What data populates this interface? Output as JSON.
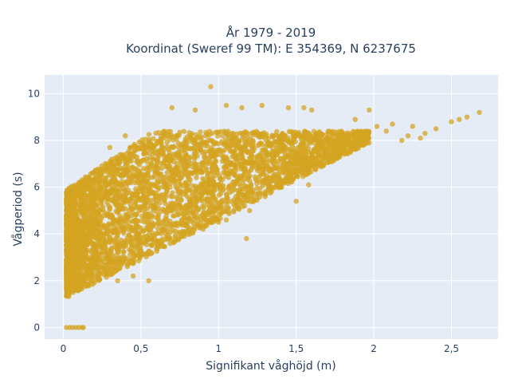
{
  "chart_data": {
    "type": "scatter",
    "title_line1": "År 1979 - 2019",
    "title_line2": "Koordinat (Sweref 99 TM): E 354369, N 6237675",
    "xlabel": "Signifikant våghöjd (m)",
    "ylabel": "Vågperiod (s)",
    "xlim": [
      -0.12,
      2.8
    ],
    "ylim": [
      -0.5,
      10.8
    ],
    "x_ticks": [
      0,
      0.5,
      1,
      1.5,
      2,
      2.5
    ],
    "x_tick_labels": [
      "0",
      "0,5",
      "1",
      "1,5",
      "2",
      "2,5"
    ],
    "y_ticks": [
      0,
      2,
      4,
      6,
      8,
      10
    ],
    "y_tick_labels": [
      "0",
      "2",
      "4",
      "6",
      "8",
      "10"
    ],
    "grid": true,
    "marker_color": "#d4a421",
    "background_color": "#e5ecf6",
    "outlier_points": [
      {
        "x": 0.95,
        "y": 10.3
      },
      {
        "x": 2.68,
        "y": 9.2
      },
      {
        "x": 2.6,
        "y": 9.0
      },
      {
        "x": 2.55,
        "y": 8.9
      },
      {
        "x": 2.5,
        "y": 8.8
      },
      {
        "x": 2.4,
        "y": 8.5
      },
      {
        "x": 2.33,
        "y": 8.3
      },
      {
        "x": 2.25,
        "y": 8.6
      },
      {
        "x": 2.22,
        "y": 8.2
      },
      {
        "x": 2.18,
        "y": 8.0
      },
      {
        "x": 2.12,
        "y": 8.7
      },
      {
        "x": 2.08,
        "y": 8.4
      },
      {
        "x": 2.02,
        "y": 8.6
      },
      {
        "x": 1.97,
        "y": 9.3
      },
      {
        "x": 1.88,
        "y": 8.9
      },
      {
        "x": 1.82,
        "y": 8.3
      },
      {
        "x": 1.6,
        "y": 9.3
      },
      {
        "x": 1.55,
        "y": 9.4
      },
      {
        "x": 1.45,
        "y": 9.4
      },
      {
        "x": 1.28,
        "y": 9.5
      },
      {
        "x": 1.15,
        "y": 9.4
      },
      {
        "x": 1.05,
        "y": 9.5
      },
      {
        "x": 0.85,
        "y": 9.3
      },
      {
        "x": 0.7,
        "y": 9.4
      },
      {
        "x": 0.65,
        "y": 8.4
      },
      {
        "x": 0.55,
        "y": 7.9
      },
      {
        "x": 0.4,
        "y": 8.2
      },
      {
        "x": 0.3,
        "y": 7.7
      },
      {
        "x": 1.85,
        "y": 7.5
      },
      {
        "x": 1.75,
        "y": 7.4
      },
      {
        "x": 1.5,
        "y": 6.7
      },
      {
        "x": 1.3,
        "y": 5.6
      },
      {
        "x": 1.4,
        "y": 6.0
      },
      {
        "x": 1.2,
        "y": 5.0
      },
      {
        "x": 1.05,
        "y": 4.6
      },
      {
        "x": 0.9,
        "y": 4.2
      },
      {
        "x": 0.78,
        "y": 3.9
      },
      {
        "x": 0.62,
        "y": 3.6
      },
      {
        "x": 0.5,
        "y": 3.1
      },
      {
        "x": 0.45,
        "y": 2.2
      },
      {
        "x": 0.55,
        "y": 2.0
      },
      {
        "x": 0.35,
        "y": 2.0
      },
      {
        "x": 1.18,
        "y": 3.8
      },
      {
        "x": 1.0,
        "y": 4.5
      },
      {
        "x": 1.5,
        "y": 5.4
      },
      {
        "x": 1.3,
        "y": 5.8
      },
      {
        "x": 1.58,
        "y": 6.1
      },
      {
        "x": 2.3,
        "y": 8.1
      },
      {
        "x": 1.92,
        "y": 7.8
      },
      {
        "x": 1.67,
        "y": 7.2
      }
    ],
    "zero_period_points": [
      {
        "x": 0.02,
        "y": 0
      },
      {
        "x": 0.04,
        "y": 0
      },
      {
        "x": 0.06,
        "y": 0
      },
      {
        "x": 0.08,
        "y": 0
      },
      {
        "x": 0.1,
        "y": 0
      },
      {
        "x": 0.12,
        "y": 0
      },
      {
        "x": 0.13,
        "y": 0
      }
    ]
  }
}
